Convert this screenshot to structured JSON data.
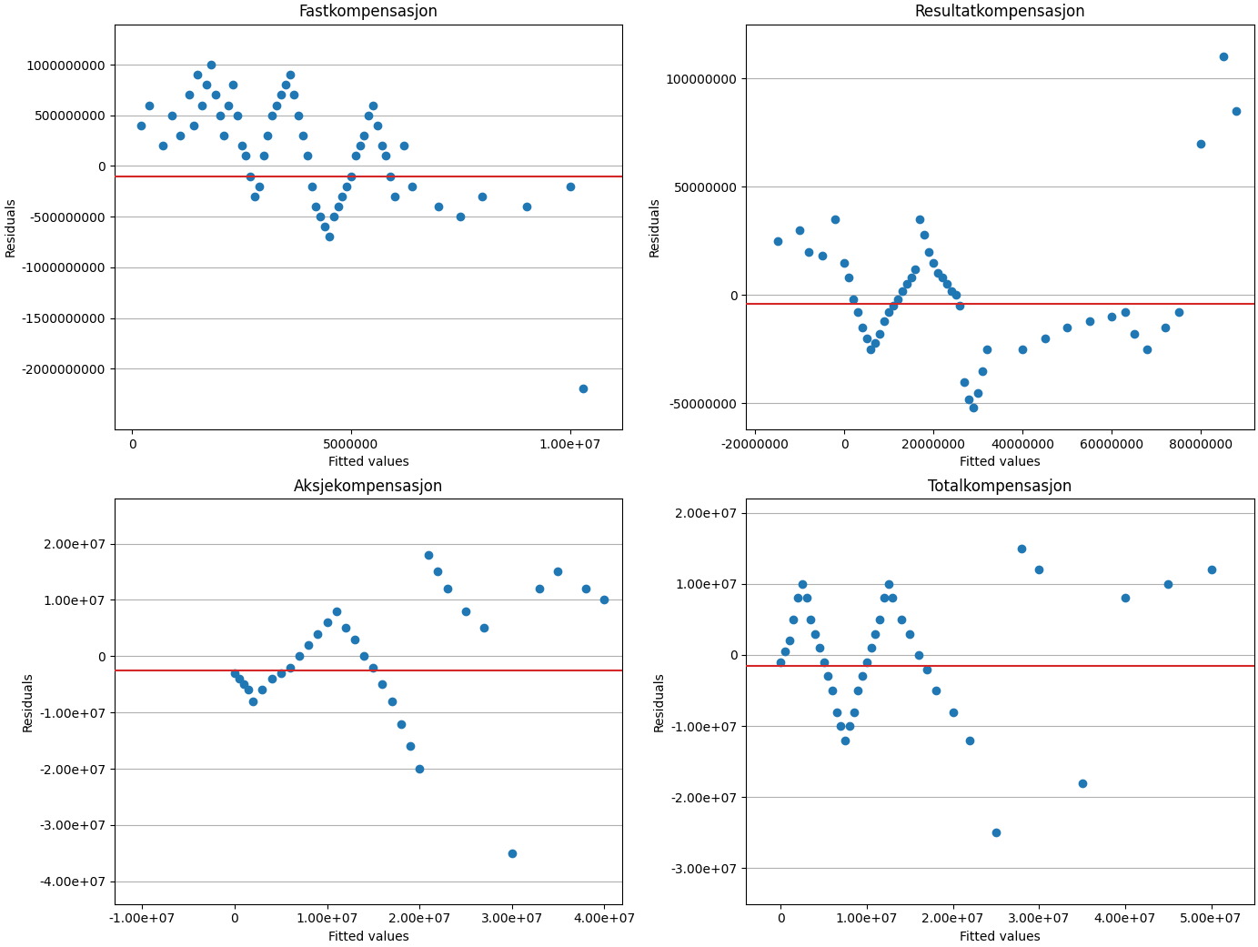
{
  "chart_data": [
    {
      "type": "scatter",
      "title": "Fastkompensasjon",
      "xlabel": "Fitted values",
      "ylabel": "Residuals",
      "xlim": [
        -400000,
        11200000
      ],
      "ylim": [
        -2600000000,
        1400000000
      ],
      "xticks": [
        0,
        5000000,
        {
          "value": 10000000,
          "label": "1.00e+07"
        }
      ],
      "yticks": [
        -2000000000,
        -1500000000,
        -1000000000,
        -500000000,
        0,
        500000000,
        1000000000
      ],
      "grid": "y",
      "reference_line": -100000000,
      "x": [
        200000,
        400000,
        700000,
        900000,
        1100000,
        1300000,
        1400000,
        1500000,
        1600000,
        1700000,
        1800000,
        1900000,
        2000000,
        2100000,
        2200000,
        2300000,
        2400000,
        2500000,
        2600000,
        2700000,
        2800000,
        2900000,
        3000000,
        3100000,
        3200000,
        3300000,
        3400000,
        3500000,
        3600000,
        3700000,
        3800000,
        3900000,
        4000000,
        4100000,
        4200000,
        4300000,
        4400000,
        4500000,
        4600000,
        4700000,
        4800000,
        4900000,
        5000000,
        5100000,
        5200000,
        5300000,
        5400000,
        5500000,
        5600000,
        5700000,
        5800000,
        5900000,
        6000000,
        6200000,
        6400000,
        7000000,
        7500000,
        8000000,
        9000000,
        10000000,
        10300000
      ],
      "values": [
        400000000,
        600000000,
        200000000,
        500000000,
        300000000,
        700000000,
        400000000,
        900000000,
        600000000,
        800000000,
        1000000000,
        700000000,
        500000000,
        300000000,
        600000000,
        800000000,
        500000000,
        200000000,
        100000000,
        -100000000,
        -300000000,
        -200000000,
        100000000,
        300000000,
        500000000,
        600000000,
        700000000,
        800000000,
        900000000,
        700000000,
        500000000,
        300000000,
        100000000,
        -200000000,
        -400000000,
        -500000000,
        -600000000,
        -700000000,
        -500000000,
        -400000000,
        -300000000,
        -200000000,
        -100000000,
        100000000,
        200000000,
        300000000,
        500000000,
        600000000,
        400000000,
        200000000,
        100000000,
        -100000000,
        -300000000,
        200000000,
        -200000000,
        -400000000,
        -500000000,
        -300000000,
        -400000000,
        -200000000,
        -2200000000
      ]
    },
    {
      "type": "scatter",
      "title": "Resultatkompensasjon",
      "xlabel": "Fitted values",
      "ylabel": "Residuals",
      "xlim": [
        -22000000,
        92000000
      ],
      "ylim": [
        -62000000,
        125000000
      ],
      "xticks": [
        -20000000,
        0,
        20000000,
        40000000,
        60000000,
        80000000
      ],
      "yticks": [
        -50000000,
        0,
        50000000,
        100000000
      ],
      "grid": "y",
      "reference_line": -4000000,
      "x": [
        -15000000,
        -10000000,
        -8000000,
        -5000000,
        -2000000,
        0,
        1000000,
        2000000,
        3000000,
        4000000,
        5000000,
        6000000,
        7000000,
        8000000,
        9000000,
        10000000,
        11000000,
        12000000,
        13000000,
        14000000,
        15000000,
        16000000,
        17000000,
        18000000,
        19000000,
        20000000,
        21000000,
        22000000,
        23000000,
        24000000,
        25000000,
        26000000,
        27000000,
        28000000,
        29000000,
        30000000,
        31000000,
        32000000,
        40000000,
        45000000,
        50000000,
        55000000,
        60000000,
        63000000,
        65000000,
        68000000,
        72000000,
        75000000,
        80000000,
        85000000,
        88000000
      ],
      "values": [
        25000000,
        30000000,
        20000000,
        18000000,
        35000000,
        15000000,
        8000000,
        -2000000,
        -8000000,
        -15000000,
        -20000000,
        -25000000,
        -22000000,
        -18000000,
        -12000000,
        -8000000,
        -5000000,
        -2000000,
        2000000,
        5000000,
        8000000,
        12000000,
        35000000,
        28000000,
        20000000,
        15000000,
        10000000,
        8000000,
        5000000,
        2000000,
        0,
        -5000000,
        -40000000,
        -48000000,
        -52000000,
        -45000000,
        -35000000,
        -25000000,
        -25000000,
        -20000000,
        -15000000,
        -12000000,
        -10000000,
        -8000000,
        -18000000,
        -25000000,
        -15000000,
        -8000000,
        70000000,
        110000000,
        85000000
      ]
    },
    {
      "type": "scatter",
      "title": "Aksjekompensasjon",
      "xlabel": "Fitted values",
      "ylabel": "Residuals",
      "xlim": [
        -13000000,
        42000000
      ],
      "ylim": [
        -44000000,
        28000000
      ],
      "xticks": [
        {
          "value": -10000000,
          "label": "-1.00e+07"
        },
        0,
        {
          "value": 10000000,
          "label": "1.00e+07"
        },
        {
          "value": 20000000,
          "label": "2.00e+07"
        },
        {
          "value": 30000000,
          "label": "3.00e+07"
        },
        {
          "value": 40000000,
          "label": "4.00e+07"
        }
      ],
      "yticks": [
        {
          "value": -40000000,
          "label": "-4.00e+07"
        },
        {
          "value": -30000000,
          "label": "-3.00e+07"
        },
        {
          "value": -20000000,
          "label": "-2.00e+07"
        },
        {
          "value": -10000000,
          "label": "-1.00e+07"
        },
        0,
        {
          "value": 10000000,
          "label": "1.00e+07"
        },
        {
          "value": 20000000,
          "label": "2.00e+07"
        }
      ],
      "grid": "y",
      "reference_line": -2500000,
      "x": [
        0,
        500000,
        1000000,
        1500000,
        2000000,
        3000000,
        4000000,
        5000000,
        6000000,
        7000000,
        8000000,
        9000000,
        10000000,
        11000000,
        12000000,
        13000000,
        14000000,
        15000000,
        16000000,
        17000000,
        18000000,
        19000000,
        20000000,
        21000000,
        22000000,
        23000000,
        25000000,
        27000000,
        30000000,
        33000000,
        35000000,
        38000000,
        40000000
      ],
      "values": [
        -3000000,
        -4000000,
        -5000000,
        -6000000,
        -8000000,
        -6000000,
        -4000000,
        -3000000,
        -2000000,
        0,
        2000000,
        4000000,
        6000000,
        8000000,
        5000000,
        3000000,
        0,
        -2000000,
        -5000000,
        -8000000,
        -12000000,
        -16000000,
        -20000000,
        18000000,
        15000000,
        12000000,
        8000000,
        5000000,
        -35000000,
        12000000,
        15000000,
        12000000,
        10000000
      ]
    },
    {
      "type": "scatter",
      "title": "Totalkompensasjon",
      "xlabel": "Fitted values",
      "ylabel": "Residuals",
      "xlim": [
        -4000000,
        55000000
      ],
      "ylim": [
        -35000000,
        22000000
      ],
      "xticks": [
        0,
        {
          "value": 10000000,
          "label": "1.00e+07"
        },
        {
          "value": 20000000,
          "label": "2.00e+07"
        },
        {
          "value": 30000000,
          "label": "3.00e+07"
        },
        {
          "value": 40000000,
          "label": "4.00e+07"
        },
        {
          "value": 50000000,
          "label": "5.00e+07"
        }
      ],
      "yticks": [
        {
          "value": -30000000,
          "label": "-3.00e+07"
        },
        {
          "value": -20000000,
          "label": "-2.00e+07"
        },
        {
          "value": -10000000,
          "label": "-1.00e+07"
        },
        0,
        {
          "value": 10000000,
          "label": "1.00e+07"
        },
        {
          "value": 20000000,
          "label": "2.00e+07"
        }
      ],
      "grid": "y",
      "reference_line": -1500000,
      "x": [
        0,
        500000,
        1000000,
        1500000,
        2000000,
        2500000,
        3000000,
        3500000,
        4000000,
        4500000,
        5000000,
        5500000,
        6000000,
        6500000,
        7000000,
        7500000,
        8000000,
        8500000,
        9000000,
        9500000,
        10000000,
        10500000,
        11000000,
        11500000,
        12000000,
        12500000,
        13000000,
        14000000,
        15000000,
        16000000,
        17000000,
        18000000,
        20000000,
        22000000,
        25000000,
        28000000,
        30000000,
        35000000,
        40000000,
        45000000,
        50000000
      ],
      "values": [
        -1000000,
        500000,
        2000000,
        5000000,
        8000000,
        10000000,
        8000000,
        5000000,
        3000000,
        1000000,
        -1000000,
        -3000000,
        -5000000,
        -8000000,
        -10000000,
        -12000000,
        -10000000,
        -8000000,
        -5000000,
        -3000000,
        -1000000,
        1000000,
        3000000,
        5000000,
        8000000,
        10000000,
        8000000,
        5000000,
        3000000,
        0,
        -2000000,
        -5000000,
        -8000000,
        -12000000,
        -25000000,
        15000000,
        12000000,
        -18000000,
        8000000,
        10000000,
        12000000
      ]
    }
  ]
}
